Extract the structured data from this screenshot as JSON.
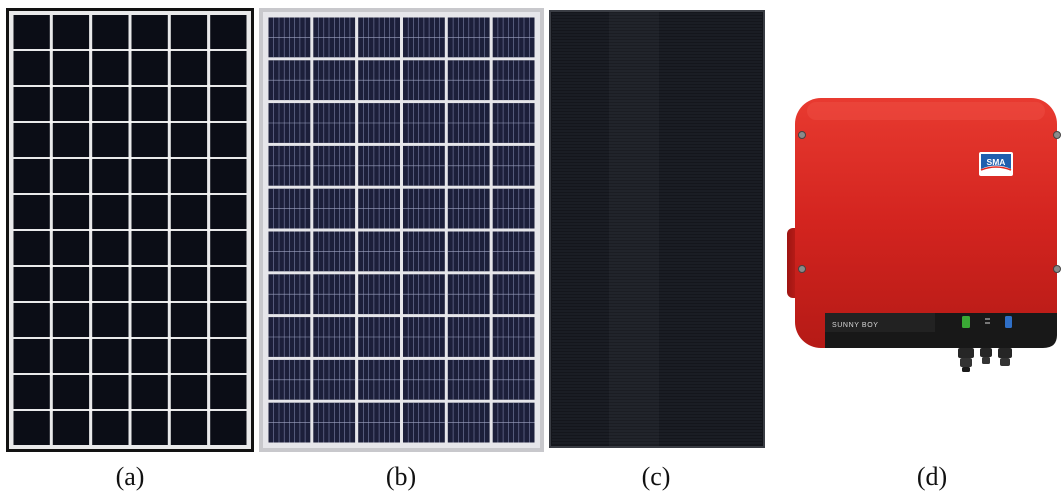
{
  "figure": {
    "captions": [
      "(a)",
      "(b)",
      "(c)",
      "(d)"
    ]
  },
  "inverter": {
    "brand": "SMA",
    "model_label": "SUNNY BOY"
  },
  "colors": {
    "panel_a_cells": "#0b0d16",
    "panel_a_frame": "#e9e9ea",
    "panel_b_cells": "#1c1f3a",
    "panel_b_frame": "#c8c8cc",
    "panel_c_surface": "#14161c",
    "inverter_body": "#d3241f",
    "inverter_strip": "#1a1a1a"
  },
  "panel_a": {
    "cell_columns": 6,
    "cell_rows": 12
  },
  "panel_b": {
    "cell_columns": 6,
    "cell_rows": 10
  }
}
